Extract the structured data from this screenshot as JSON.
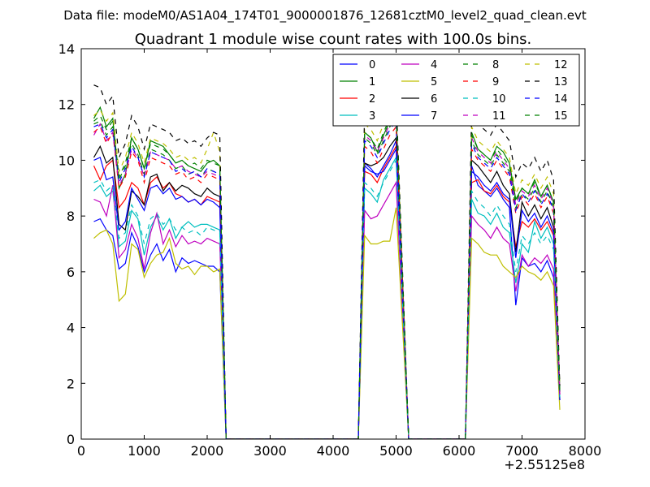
{
  "header": {
    "file_label": "Data file: modeM0/AS1A04_174T01_9000001876_12681cztM0_level2_quad_clean.evt"
  },
  "chart_data": {
    "type": "line",
    "title": "Quadrant 1 module wise count rates with 100.0s bins.",
    "xlabel": "",
    "ylabel": "",
    "x_offset_label": "+2.55125e8",
    "xlim": [
      0,
      8000
    ],
    "ylim": [
      0,
      14
    ],
    "x_ticks": [
      0,
      1000,
      2000,
      3000,
      4000,
      5000,
      6000,
      7000,
      8000
    ],
    "y_ticks": [
      0,
      2,
      4,
      6,
      8,
      10,
      12,
      14
    ],
    "grid": false,
    "legend_position": "top-right",
    "segments": [
      {
        "x": [
          200,
          300,
          400,
          500,
          600,
          700,
          800,
          900,
          1000,
          1100,
          1200,
          1300,
          1400,
          1500,
          1600,
          1700,
          1800,
          1900,
          2000,
          2100,
          2200,
          2300
        ]
      },
      {
        "x": [
          4500,
          4600,
          4700,
          4800,
          4900,
          5000
        ]
      },
      {
        "x": [
          6200,
          6300,
          6400,
          6500,
          6600,
          6700,
          6800,
          6900,
          7000,
          7100,
          7200,
          7300,
          7400,
          7500,
          7600
        ]
      }
    ],
    "zero_runs": [
      [
        2300,
        4400
      ],
      [
        5200,
        6100
      ]
    ],
    "series": [
      {
        "name": "0",
        "color": "#0000ff",
        "dash": "solid",
        "values": [
          [
            7.8,
            7.9,
            7.5,
            7.3,
            6.1,
            6.3,
            7.4,
            6.9,
            6.0,
            6.6,
            7.0,
            6.4,
            6.8,
            6.0,
            6.5,
            6.3,
            6.4,
            6.3,
            6.2,
            6.2,
            6.0,
            0
          ],
          [
            9.9,
            9.7,
            9.4,
            9.8,
            10.2,
            10.7
          ],
          [
            9.8,
            9.1,
            8.9,
            8.7,
            9.0,
            8.6,
            8.3,
            4.8,
            6.5,
            6.2,
            6.3,
            6.0,
            6.4,
            5.8,
            1.5
          ]
        ]
      },
      {
        "name": "1",
        "color": "#008000",
        "dash": "solid",
        "values": [
          [
            11.5,
            11.9,
            11.2,
            11.5,
            9.0,
            9.5,
            10.8,
            10.4,
            9.7,
            10.7,
            10.6,
            10.5,
            10.2,
            9.9,
            10.0,
            9.8,
            9.7,
            9.6,
            9.9,
            10.0,
            9.8,
            0
          ],
          [
            11.0,
            10.8,
            10.3,
            10.9,
            11.4,
            11.7
          ],
          [
            11.0,
            10.4,
            10.2,
            10.0,
            10.5,
            10.3,
            9.9,
            8.6,
            9.0,
            8.8,
            9.3,
            8.7,
            9.1,
            8.5,
            1.7
          ]
        ]
      },
      {
        "name": "2",
        "color": "#ff0000",
        "dash": "solid",
        "values": [
          [
            9.8,
            9.3,
            9.8,
            10.0,
            8.3,
            8.6,
            9.2,
            9.0,
            8.4,
            9.2,
            9.4,
            9.0,
            9.2,
            8.8,
            8.7,
            8.5,
            8.6,
            8.4,
            8.7,
            8.6,
            8.5,
            0
          ],
          [
            9.6,
            9.5,
            9.2,
            9.7,
            10.1,
            10.5
          ],
          [
            9.2,
            9.3,
            8.9,
            8.8,
            9.1,
            8.7,
            8.5,
            6.9,
            7.8,
            7.6,
            7.9,
            7.5,
            7.8,
            7.3,
            1.6
          ]
        ]
      },
      {
        "name": "3",
        "color": "#00bfbf",
        "dash": "solid",
        "values": [
          [
            8.9,
            9.1,
            8.7,
            8.9,
            6.9,
            7.1,
            8.2,
            7.9,
            6.6,
            7.6,
            8.0,
            7.5,
            7.9,
            7.2,
            7.6,
            7.8,
            7.6,
            7.7,
            7.7,
            7.6,
            7.5,
            0
          ],
          [
            9.0,
            8.8,
            8.5,
            9.3,
            9.7,
            10.1
          ],
          [
            8.6,
            8.1,
            8.0,
            7.7,
            8.1,
            7.6,
            7.4,
            5.6,
            7.0,
            6.7,
            7.8,
            7.2,
            7.6,
            7.0,
            1.5
          ]
        ]
      },
      {
        "name": "4",
        "color": "#bf00bf",
        "dash": "solid",
        "values": [
          [
            8.6,
            8.5,
            8.0,
            9.1,
            6.5,
            6.8,
            7.7,
            7.2,
            6.1,
            7.4,
            8.1,
            7.0,
            7.5,
            6.9,
            7.3,
            7.0,
            7.1,
            7.0,
            7.2,
            7.1,
            7.0,
            0
          ],
          [
            8.2,
            7.9,
            8.0,
            8.4,
            8.8,
            9.2
          ],
          [
            8.0,
            7.7,
            7.5,
            7.2,
            7.6,
            7.2,
            7.0,
            5.3,
            6.6,
            6.2,
            6.5,
            6.3,
            6.6,
            6.1,
            1.4
          ]
        ]
      },
      {
        "name": "5",
        "color": "#bfbf00",
        "dash": "solid",
        "values": [
          [
            7.2,
            7.4,
            7.5,
            7.0,
            4.95,
            5.2,
            7.0,
            6.8,
            5.8,
            6.3,
            6.6,
            6.7,
            7.2,
            6.3,
            6.1,
            6.2,
            5.9,
            6.2,
            6.2,
            6.0,
            6.1,
            0
          ],
          [
            7.3,
            7.0,
            7.0,
            7.1,
            7.1,
            8.3
          ],
          [
            7.2,
            7.0,
            6.7,
            6.6,
            6.6,
            6.2,
            6.0,
            5.8,
            6.2,
            6.0,
            5.9,
            5.7,
            6.0,
            5.5,
            1.05
          ]
        ]
      },
      {
        "name": "6",
        "color": "#000000",
        "dash": "solid",
        "values": [
          [
            10.1,
            10.5,
            9.9,
            10.1,
            7.7,
            7.5,
            8.9,
            8.7,
            8.4,
            9.4,
            9.5,
            8.9,
            9.2,
            8.9,
            9.1,
            9.0,
            8.8,
            8.7,
            9.0,
            8.8,
            8.7,
            0
          ],
          [
            9.9,
            9.8,
            9.9,
            10.1,
            10.5,
            10.8
          ],
          [
            10.0,
            9.8,
            9.5,
            9.2,
            9.6,
            9.1,
            8.8,
            6.7,
            8.5,
            8.0,
            8.4,
            7.9,
            8.3,
            7.6,
            1.4
          ]
        ]
      },
      {
        "name": "7",
        "color": "#0000ff",
        "dash": "solid",
        "values": [
          [
            10.0,
            10.1,
            9.3,
            9.4,
            7.5,
            7.8,
            9.0,
            8.6,
            8.2,
            9.0,
            9.1,
            8.8,
            9.0,
            8.6,
            8.7,
            8.5,
            8.6,
            8.4,
            8.6,
            8.5,
            8.3,
            0
          ],
          [
            9.8,
            9.6,
            9.5,
            9.6,
            10.0,
            10.4
          ],
          [
            9.6,
            9.4,
            9.1,
            8.9,
            9.2,
            8.8,
            8.6,
            6.5,
            8.2,
            7.8,
            8.1,
            7.6,
            8.0,
            7.4,
            1.4
          ]
        ]
      },
      {
        "name": "8",
        "color": "#008000",
        "dash": "dashed",
        "values": [
          [
            11.3,
            11.4,
            10.9,
            11.2,
            9.3,
            9.8,
            10.6,
            10.2,
            9.5,
            10.4,
            10.3,
            10.2,
            10.0,
            9.7,
            9.8,
            9.5,
            9.6,
            9.4,
            9.7,
            9.6,
            9.5,
            0
          ],
          [
            10.8,
            10.6,
            10.2,
            10.7,
            11.2,
            11.5
          ],
          [
            10.7,
            10.2,
            10.0,
            9.8,
            10.2,
            9.9,
            9.6,
            8.3,
            8.8,
            8.6,
            9.0,
            8.5,
            8.9,
            8.3,
            1.7
          ]
        ]
      },
      {
        "name": "9",
        "color": "#ff0000",
        "dash": "dashed",
        "values": [
          [
            11.0,
            11.2,
            10.6,
            11.0,
            9.0,
            9.4,
            10.3,
            10.0,
            9.2,
            10.1,
            10.0,
            9.9,
            9.8,
            9.5,
            9.6,
            9.3,
            9.4,
            9.2,
            9.5,
            9.4,
            9.3,
            0
          ],
          [
            10.5,
            10.3,
            9.9,
            10.4,
            10.9,
            11.2
          ],
          [
            10.4,
            10.0,
            9.8,
            9.6,
            10.0,
            9.7,
            9.4,
            8.1,
            8.7,
            8.4,
            8.8,
            8.3,
            8.7,
            8.1,
            1.6
          ]
        ]
      },
      {
        "name": "10",
        "color": "#00bfbf",
        "dash": "dashed",
        "values": [
          [
            9.2,
            9.3,
            8.9,
            9.1,
            7.2,
            7.4,
            8.4,
            8.0,
            7.0,
            7.9,
            8.1,
            7.7,
            7.9,
            7.5,
            7.6,
            7.4,
            7.5,
            7.3,
            7.6,
            7.5,
            7.4,
            0
          ],
          [
            9.2,
            9.0,
            8.7,
            9.2,
            9.6,
            10.0
          ],
          [
            8.9,
            8.5,
            8.3,
            8.0,
            8.4,
            8.0,
            7.7,
            6.0,
            7.3,
            7.0,
            7.4,
            7.0,
            7.3,
            6.8,
            1.5
          ]
        ]
      },
      {
        "name": "11",
        "color": "#bf00bf",
        "dash": "dashed",
        "values": [
          [
            10.9,
            11.3,
            10.7,
            11.0,
            9.1,
            9.5,
            10.4,
            10.1,
            9.4,
            10.3,
            10.2,
            10.1,
            10.0,
            9.7,
            9.8,
            9.6,
            9.5,
            9.4,
            9.6,
            9.5,
            9.4,
            0
          ],
          [
            10.9,
            10.7,
            10.3,
            10.8,
            11.3,
            11.6
          ],
          [
            10.8,
            10.3,
            10.1,
            9.9,
            10.3,
            10.0,
            9.7,
            8.4,
            8.9,
            8.7,
            9.1,
            8.6,
            9.0,
            8.4,
            1.6
          ]
        ]
      },
      {
        "name": "12",
        "color": "#bfbf00",
        "dash": "dashed",
        "values": [
          [
            11.6,
            11.8,
            11.4,
            11.7,
            9.6,
            10.1,
            11.0,
            10.6,
            9.9,
            10.8,
            10.7,
            10.6,
            10.4,
            10.1,
            10.2,
            10.0,
            10.1,
            9.9,
            10.4,
            11.0,
            10.3,
            0
          ],
          [
            11.3,
            11.1,
            10.7,
            11.3,
            11.8,
            12.1
          ],
          [
            11.2,
            10.7,
            10.5,
            10.3,
            10.7,
            10.4,
            10.1,
            8.8,
            9.3,
            9.1,
            9.5,
            9.0,
            9.4,
            8.8,
            1.8
          ]
        ]
      },
      {
        "name": "13",
        "color": "#000000",
        "dash": "dashed",
        "values": [
          [
            12.7,
            12.6,
            12.0,
            12.3,
            10.1,
            10.6,
            11.6,
            11.2,
            10.4,
            11.3,
            11.2,
            11.1,
            11.0,
            10.7,
            10.8,
            10.6,
            10.7,
            10.5,
            10.8,
            11.0,
            10.9,
            0
          ],
          [
            11.9,
            11.7,
            11.3,
            11.8,
            12.4,
            12.3
          ],
          [
            11.8,
            11.3,
            11.1,
            10.9,
            11.3,
            11.0,
            10.7,
            9.4,
            9.9,
            9.7,
            10.1,
            9.6,
            10.0,
            9.3,
            1.9
          ]
        ]
      },
      {
        "name": "14",
        "color": "#0000ff",
        "dash": "dashed",
        "values": [
          [
            11.2,
            11.3,
            10.8,
            11.1,
            9.2,
            9.7,
            10.5,
            10.1,
            9.4,
            10.3,
            10.2,
            10.1,
            10.0,
            9.6,
            9.7,
            9.5,
            9.6,
            9.4,
            9.7,
            9.6,
            9.5,
            0
          ],
          [
            10.7,
            10.5,
            10.1,
            10.6,
            11.1,
            11.4
          ],
          [
            10.6,
            10.1,
            9.9,
            9.7,
            10.1,
            9.8,
            9.5,
            8.2,
            8.8,
            8.5,
            8.9,
            8.4,
            8.8,
            8.2,
            1.6
          ]
        ]
      },
      {
        "name": "15",
        "color": "#008000",
        "dash": "dashed",
        "values": [
          [
            11.4,
            11.6,
            11.1,
            11.4,
            9.4,
            9.9,
            10.8,
            10.4,
            9.7,
            10.6,
            10.5,
            10.4,
            10.2,
            9.9,
            10.0,
            9.8,
            9.9,
            9.7,
            10.0,
            9.9,
            9.8,
            0
          ],
          [
            11.0,
            10.8,
            10.4,
            11.0,
            11.5,
            11.8
          ],
          [
            10.9,
            10.4,
            10.2,
            10.0,
            10.4,
            10.1,
            9.8,
            8.5,
            9.0,
            8.8,
            9.2,
            8.7,
            9.1,
            8.5,
            1.7
          ]
        ]
      }
    ]
  }
}
